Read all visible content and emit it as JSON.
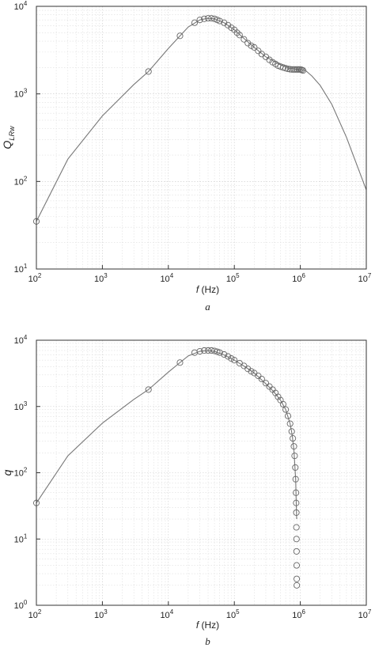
{
  "chart_data": [
    {
      "type": "line",
      "panel_label": "a",
      "xlabel_italic": "f",
      "xlabel_rest": " (Hz)",
      "ylabel_main": "Q",
      "ylabel_sub": "LRw",
      "x_scale": "log",
      "y_scale": "log",
      "xlim": [
        100,
        10000000
      ],
      "ylim": [
        10,
        10000
      ],
      "grid": true,
      "x_ticks": [
        {
          "base": "10",
          "exp": "2",
          "value": 100
        },
        {
          "base": "10",
          "exp": "3",
          "value": 1000
        },
        {
          "base": "10",
          "exp": "4",
          "value": 10000
        },
        {
          "base": "10",
          "exp": "5",
          "value": 100000
        },
        {
          "base": "10",
          "exp": "6",
          "value": 1000000
        },
        {
          "base": "10",
          "exp": "7",
          "value": 10000000
        }
      ],
      "y_ticks": [
        {
          "base": "10",
          "exp": "1",
          "value": 10
        },
        {
          "base": "10",
          "exp": "2",
          "value": 100
        },
        {
          "base": "10",
          "exp": "3",
          "value": 1000
        },
        {
          "base": "10",
          "exp": "4",
          "value": 10000
        }
      ],
      "series": [
        {
          "style": "solid line",
          "color": "#777777",
          "x": [
            100,
            300,
            1000,
            3000,
            5000,
            10000,
            15000,
            20000,
            30000,
            40000,
            50000,
            70000,
            100000,
            150000,
            200000,
            300000,
            500000,
            700000,
            1000000,
            1200000,
            1500000,
            2000000,
            3000000,
            5000000,
            10000000
          ],
          "y": [
            35,
            180,
            560,
            1280,
            1800,
            3300,
            4600,
            5800,
            7000,
            7300,
            7200,
            6500,
            5400,
            4100,
            3400,
            2650,
            2150,
            1950,
            1900,
            1850,
            1600,
            1250,
            760,
            320,
            80
          ]
        },
        {
          "style": "open circle markers",
          "color": "#666666",
          "x": [
            100,
            5000,
            15000,
            25000,
            30000,
            35000,
            40000,
            45000,
            50000,
            55000,
            60000,
            70000,
            80000,
            90000,
            100000,
            110000,
            120000,
            140000,
            160000,
            180000,
            200000,
            230000,
            260000,
            300000,
            340000,
            380000,
            420000,
            460000,
            500000,
            550000,
            600000,
            650000,
            700000,
            750000,
            800000,
            850000,
            900000,
            950000,
            1000000,
            1050000,
            1100000
          ],
          "y": [
            35,
            1800,
            4600,
            6500,
            7000,
            7200,
            7300,
            7300,
            7200,
            7000,
            6800,
            6500,
            6100,
            5700,
            5400,
            5000,
            4700,
            4200,
            3800,
            3550,
            3400,
            3100,
            2850,
            2650,
            2450,
            2300,
            2200,
            2100,
            2050,
            2000,
            1960,
            1930,
            1910,
            1900,
            1900,
            1900,
            1900,
            1900,
            1900,
            1880,
            1850
          ]
        }
      ]
    },
    {
      "type": "line",
      "panel_label": "b",
      "xlabel_italic": "f",
      "xlabel_rest": " (Hz)",
      "ylabel_main": "q",
      "ylabel_sub": "",
      "x_scale": "log",
      "y_scale": "log",
      "xlim": [
        100,
        10000000
      ],
      "ylim": [
        1,
        10000
      ],
      "grid": true,
      "x_ticks": [
        {
          "base": "10",
          "exp": "2",
          "value": 100
        },
        {
          "base": "10",
          "exp": "3",
          "value": 1000
        },
        {
          "base": "10",
          "exp": "4",
          "value": 10000
        },
        {
          "base": "10",
          "exp": "5",
          "value": 100000
        },
        {
          "base": "10",
          "exp": "6",
          "value": 1000000
        },
        {
          "base": "10",
          "exp": "7",
          "value": 10000000
        }
      ],
      "y_ticks": [
        {
          "base": "10",
          "exp": "0",
          "value": 1
        },
        {
          "base": "10",
          "exp": "1",
          "value": 10
        },
        {
          "base": "10",
          "exp": "2",
          "value": 100
        },
        {
          "base": "10",
          "exp": "3",
          "value": 1000
        },
        {
          "base": "10",
          "exp": "4",
          "value": 10000
        }
      ],
      "series": [
        {
          "style": "solid line",
          "color": "#777777",
          "x": [
            100,
            300,
            1000,
            3000,
            5000,
            10000,
            15000,
            20000,
            30000,
            40000,
            50000,
            70000,
            100000,
            150000,
            200000,
            300000,
            400000,
            500000,
            600000,
            700000,
            750000,
            800000,
            850000,
            870000,
            880000
          ],
          "y": [
            35,
            180,
            560,
            1280,
            1800,
            3300,
            4600,
            5800,
            6800,
            7000,
            6800,
            6000,
            5000,
            3900,
            3200,
            2200,
            1650,
            1250,
            900,
            550,
            380,
            220,
            80,
            30,
            20
          ]
        },
        {
          "style": "open circle markers",
          "color": "#666666",
          "x": [
            100,
            5000,
            15000,
            25000,
            30000,
            35000,
            40000,
            45000,
            50000,
            55000,
            60000,
            70000,
            80000,
            90000,
            100000,
            120000,
            140000,
            160000,
            180000,
            200000,
            230000,
            260000,
            300000,
            340000,
            380000,
            420000,
            460000,
            500000,
            550000,
            600000,
            650000,
            700000,
            740000,
            770000,
            800000,
            820000,
            840000,
            850000,
            860000,
            865000,
            870000,
            872000,
            875000,
            877000,
            880000,
            882000,
            884000
          ],
          "y": [
            35,
            1800,
            4600,
            6500,
            6800,
            7000,
            7000,
            7000,
            6900,
            6700,
            6500,
            6100,
            5700,
            5300,
            5000,
            4500,
            4100,
            3700,
            3400,
            3200,
            2900,
            2600,
            2250,
            2000,
            1800,
            1600,
            1400,
            1250,
            1080,
            900,
            720,
            550,
            420,
            330,
            250,
            180,
            120,
            80,
            50,
            35,
            25,
            15,
            10,
            6.5,
            4,
            2.5,
            2
          ]
        }
      ]
    }
  ]
}
